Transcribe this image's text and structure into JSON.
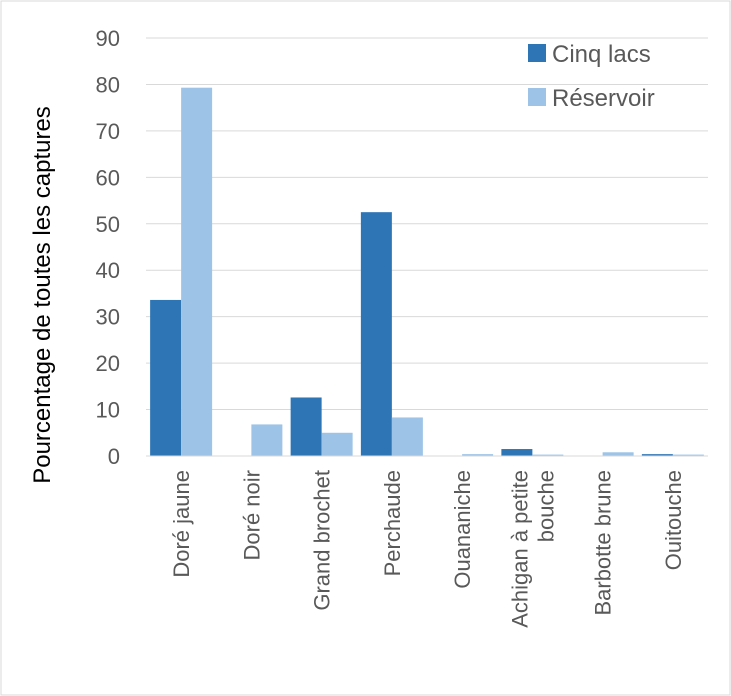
{
  "chart_data": {
    "type": "bar",
    "title": "",
    "xlabel": "",
    "ylabel": "Pourcentage de toutes les captures",
    "ylim": [
      0,
      90
    ],
    "yticks": [
      0,
      10,
      20,
      30,
      40,
      50,
      60,
      70,
      80,
      90
    ],
    "grid": true,
    "legend_position": "top-right",
    "categories": [
      [
        "Doré jaune"
      ],
      [
        "Doré noir"
      ],
      [
        "Grand brochet"
      ],
      [
        "Perchaude"
      ],
      [
        "Ouananiche"
      ],
      [
        "Achigan à petite",
        "bouche"
      ],
      [
        "Barbotte brune"
      ],
      [
        "Ouitouche"
      ]
    ],
    "series": [
      {
        "name": "Cinq lacs",
        "color": "#2E75B6",
        "values": [
          33.6,
          0,
          12.6,
          52.5,
          0,
          1.5,
          0,
          0.4
        ]
      },
      {
        "name": "Réservoir",
        "color": "#9DC3E6",
        "values": [
          79.3,
          6.8,
          5.0,
          8.3,
          0.4,
          0.3,
          0.8,
          0.3
        ]
      }
    ]
  }
}
